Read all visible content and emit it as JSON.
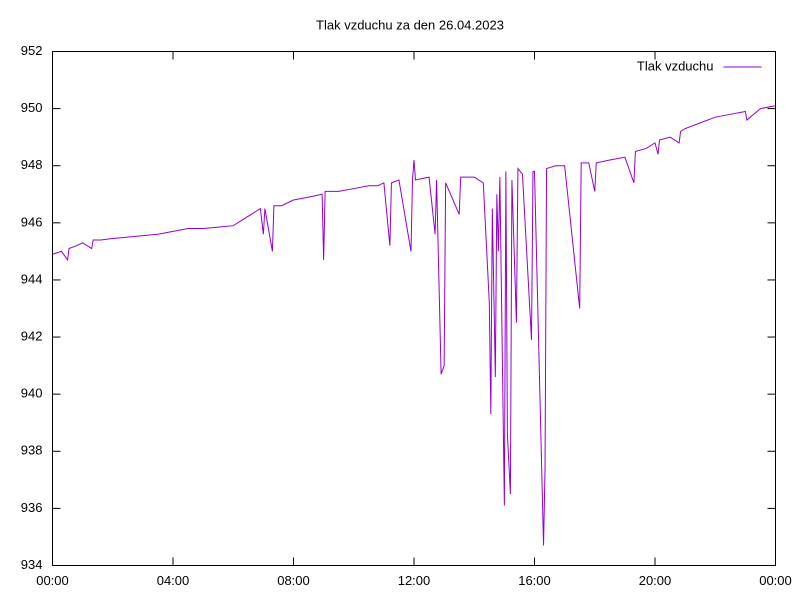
{
  "chart_data": {
    "type": "line",
    "title": "Tlak vzduchu za den 26.04.2023",
    "x": [
      0,
      0.3,
      0.5,
      0.55,
      0.8,
      1.0,
      1.3,
      1.35,
      1.6,
      2.0,
      2.5,
      3.0,
      3.5,
      4.0,
      4.5,
      5.0,
      5.5,
      6.0,
      6.3,
      6.6,
      6.9,
      7.0,
      7.05,
      7.3,
      7.35,
      7.6,
      8.0,
      8.5,
      8.95,
      9.0,
      9.05,
      9.5,
      10.0,
      10.5,
      10.8,
      11.0,
      11.2,
      11.25,
      11.5,
      11.9,
      11.95,
      12.0,
      12.05,
      12.5,
      12.7,
      12.75,
      12.9,
      13.0,
      13.05,
      13.5,
      13.55,
      14.0,
      14.3,
      14.5,
      14.55,
      14.6,
      14.7,
      14.75,
      14.8,
      14.85,
      15.0,
      15.05,
      15.1,
      15.2,
      15.25,
      15.4,
      15.45,
      15.6,
      15.9,
      15.95,
      16.0,
      16.3,
      16.35,
      16.4,
      16.7,
      17.0,
      17.5,
      17.55,
      17.8,
      18.0,
      18.05,
      18.5,
      19.0,
      19.3,
      19.35,
      19.7,
      20.0,
      20.1,
      20.15,
      20.5,
      20.8,
      20.85,
      21.0,
      21.5,
      22.0,
      22.5,
      23.0,
      23.05,
      23.5,
      24.0
    ],
    "series": [
      {
        "name": "Tlak vzduchu",
        "color": "#9400d3",
        "values": [
          944.9,
          945.0,
          944.7,
          945.1,
          945.2,
          945.3,
          945.1,
          945.4,
          945.4,
          945.45,
          945.5,
          945.55,
          945.6,
          945.7,
          945.8,
          945.8,
          945.85,
          945.9,
          946.1,
          946.3,
          946.5,
          945.6,
          946.5,
          945.0,
          946.6,
          946.6,
          946.8,
          946.9,
          947.0,
          944.7,
          947.1,
          947.1,
          947.2,
          947.3,
          947.3,
          947.4,
          945.2,
          947.4,
          947.5,
          945.0,
          947.5,
          948.2,
          947.5,
          947.6,
          945.6,
          947.5,
          940.7,
          941.0,
          947.4,
          946.3,
          947.6,
          947.6,
          947.4,
          943.2,
          939.3,
          946.5,
          940.6,
          947.0,
          945.0,
          947.6,
          936.1,
          947.8,
          938.6,
          936.5,
          947.5,
          942.5,
          947.9,
          947.7,
          941.9,
          947.8,
          947.8,
          934.7,
          937.4,
          947.9,
          948.0,
          948.0,
          943.0,
          948.1,
          948.1,
          947.1,
          948.1,
          948.2,
          948.3,
          947.4,
          948.5,
          948.6,
          948.8,
          948.4,
          948.9,
          949.0,
          948.8,
          949.2,
          949.3,
          949.5,
          949.7,
          949.8,
          949.9,
          949.6,
          950.0,
          950.1
        ]
      }
    ],
    "xlim": [
      0,
      24
    ],
    "xticks": [
      {
        "value": 0,
        "label": "00:00"
      },
      {
        "value": 4,
        "label": "04:00"
      },
      {
        "value": 8,
        "label": "08:00"
      },
      {
        "value": 12,
        "label": "12:00"
      },
      {
        "value": 16,
        "label": "16:00"
      },
      {
        "value": 20,
        "label": "20:00"
      },
      {
        "value": 24,
        "label": "00:00"
      }
    ],
    "ylim": [
      934,
      952
    ],
    "yticks": [
      934,
      936,
      938,
      940,
      942,
      944,
      946,
      948,
      950,
      952
    ],
    "grid": false,
    "legend": "top-right"
  }
}
